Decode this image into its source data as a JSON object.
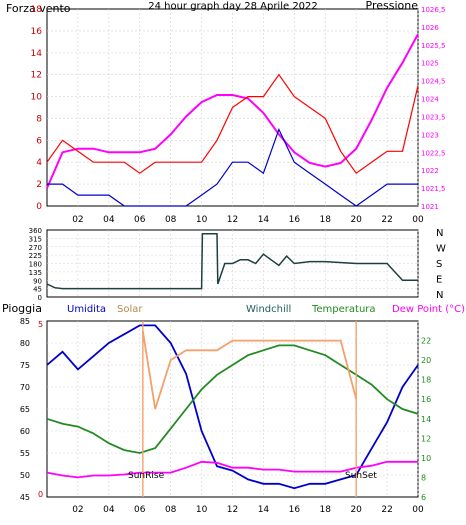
{
  "colors": {
    "wind": "#ff0000",
    "gust_pressure_axis": "#ff00ff",
    "title": "#ffff00",
    "direction": "#1f3f3f",
    "humidity": "#0000cc",
    "solar": "#f5a06b",
    "solar_text": "#b5894a",
    "windchill": "#206060",
    "temperature": "#228b22",
    "dewpoint": "#ff00ff",
    "rain": "#cc0000",
    "grid": "#d3d3d3",
    "frame": "#000000"
  },
  "x_tick_labels": [
    "02",
    "04",
    "06",
    "08",
    "10",
    "12",
    "14",
    "16",
    "18",
    "20",
    "22",
    "00"
  ],
  "chart_data": [
    {
      "type": "line",
      "title": "24 hour graph day   28 Aprile 2022",
      "left_axis_label": "Forza vento",
      "right_axis_label": "Pressione",
      "ylim_left": [
        0,
        18
      ],
      "ylim_right": [
        1021,
        1026.5
      ],
      "left_ticks": [
        "0",
        "2",
        "4",
        "6",
        "8",
        "10",
        "12",
        "14",
        "16",
        "18"
      ],
      "right_ticks": [
        "1021",
        "1021,5",
        "1022",
        "1022,5",
        "1023",
        "1023,5",
        "1024",
        "1024,5",
        "1025",
        "1025,5",
        "1026",
        "1026,5"
      ],
      "series": [
        {
          "color": "#ff00ff",
          "axis": "right",
          "x": [
            0,
            1,
            2,
            3,
            4,
            5,
            6,
            7,
            8,
            9,
            10,
            11,
            12,
            13,
            14,
            15,
            16,
            17,
            18,
            19,
            20,
            21,
            22,
            23,
            24
          ],
          "values": [
            1021.5,
            1022.5,
            1022.6,
            1022.6,
            1022.5,
            1022.5,
            1022.5,
            1022.6,
            1023.0,
            1023.5,
            1023.9,
            1024.1,
            1024.1,
            1024.0,
            1023.6,
            1023.0,
            1022.5,
            1022.2,
            1022.1,
            1022.2,
            1022.6,
            1023.4,
            1024.3,
            1025.0,
            1025.8
          ]
        },
        {
          "color": "#ff0000",
          "axis": "left",
          "x": [
            0,
            1,
            2,
            3,
            4,
            5,
            6,
            7,
            8,
            9,
            10,
            11,
            12,
            13,
            14,
            15,
            16,
            17,
            18,
            19,
            20,
            21,
            22,
            23,
            24
          ],
          "values": [
            4,
            6,
            5,
            4,
            4,
            4,
            3,
            4,
            4,
            4,
            4,
            6,
            9,
            10,
            10,
            12,
            10,
            9,
            8,
            5,
            3,
            4,
            5,
            5,
            11
          ]
        },
        {
          "color": "#0000cc",
          "axis": "left",
          "x": [
            0,
            1,
            2,
            3,
            4,
            5,
            6,
            7,
            8,
            9,
            10,
            11,
            12,
            13,
            14,
            15,
            16,
            17,
            18,
            19,
            20,
            21,
            22,
            23,
            24
          ],
          "values": [
            2,
            2,
            1,
            1,
            1,
            0,
            0,
            0,
            0,
            0,
            1,
            2,
            4,
            4,
            3,
            7,
            4,
            3,
            2,
            1,
            0,
            1,
            2,
            2,
            2
          ]
        }
      ]
    },
    {
      "type": "line",
      "title": "",
      "ylim": [
        0,
        360
      ],
      "left_ticks": [
        "0",
        "45",
        "90",
        "135",
        "180",
        "225",
        "270",
        "315",
        "360"
      ],
      "right_ticks": [
        "N",
        "E",
        "S",
        "W",
        "N"
      ],
      "series": [
        {
          "color": "#1f3f3f",
          "x": [
            0,
            0.5,
            1,
            2,
            4,
            6,
            8,
            10,
            10.05,
            11,
            11.05,
            11.5,
            12,
            12.5,
            13,
            13.5,
            14,
            14.5,
            15,
            15.5,
            16,
            17,
            18,
            20,
            22,
            23,
            24
          ],
          "values": [
            70,
            50,
            45,
            45,
            45,
            45,
            45,
            45,
            340,
            340,
            70,
            180,
            180,
            200,
            200,
            180,
            230,
            200,
            170,
            220,
            180,
            190,
            190,
            180,
            180,
            90,
            90
          ]
        }
      ]
    },
    {
      "type": "line",
      "left_axis_label": "Pioggia",
      "legend": [
        "Umidita",
        "Solar",
        "Windchill",
        "Temperatura",
        "Dew Point (°C)"
      ],
      "ylim_humidity": [
        45,
        85
      ],
      "ylim_temperature": [
        6,
        24
      ],
      "humidity_ticks": [
        "45",
        "50",
        "55",
        "60",
        "65",
        "70",
        "75",
        "80",
        "85"
      ],
      "temperature_ticks": [
        "6",
        "8",
        "10",
        "12",
        "14",
        "16",
        "18",
        "20",
        "22"
      ],
      "rain_ticks": [
        "0",
        "5"
      ],
      "annotations": [
        "SunRise",
        "SunSet"
      ],
      "series": [
        {
          "name": "Umidita",
          "color": "#0000cc",
          "axis": "humidity",
          "x": [
            0,
            1,
            2,
            3,
            4,
            5,
            6,
            7,
            8,
            9,
            10,
            11,
            12,
            13,
            14,
            15,
            16,
            17,
            18,
            19,
            20,
            21,
            22,
            23,
            24
          ],
          "values": [
            75,
            78,
            74,
            77,
            80,
            82,
            84,
            84,
            80,
            73,
            60,
            52,
            51,
            49,
            48,
            48,
            47,
            48,
            48,
            49,
            50,
            56,
            62,
            70,
            75
          ]
        },
        {
          "name": "Temperatura",
          "color": "#228b22",
          "axis": "temperature",
          "x": [
            0,
            1,
            2,
            3,
            4,
            5,
            6,
            7,
            8,
            9,
            10,
            11,
            12,
            13,
            14,
            15,
            16,
            17,
            18,
            19,
            20,
            21,
            22,
            23,
            24
          ],
          "values": [
            14,
            13.5,
            13.2,
            12.5,
            11.5,
            10.8,
            10.5,
            11,
            13,
            15,
            17,
            18.5,
            19.5,
            20.5,
            21,
            21.5,
            21.5,
            21,
            20.5,
            19.5,
            18.5,
            17.5,
            16,
            15,
            14.5
          ]
        },
        {
          "name": "Dew Point",
          "color": "#ff00ff",
          "axis": "temperature",
          "x": [
            0,
            1,
            2,
            3,
            4,
            5,
            6,
            7,
            8,
            9,
            10,
            11,
            12,
            13,
            14,
            15,
            16,
            17,
            18,
            19,
            20,
            21,
            22,
            23,
            24
          ],
          "values": [
            8.5,
            8.2,
            8,
            8.2,
            8.2,
            8.3,
            8.5,
            8.5,
            8.5,
            9,
            9.6,
            9.5,
            9,
            9,
            8.8,
            8.8,
            8.6,
            8.6,
            8.6,
            8.6,
            9,
            9.2,
            9.6,
            9.6,
            9.6
          ]
        },
        {
          "name": "Solar",
          "color": "#f5a06b",
          "axis": "temperature",
          "x": [
            6.2,
            7,
            8,
            9,
            10,
            11,
            12,
            13,
            14,
            15,
            16,
            17,
            18,
            19,
            20
          ],
          "values": [
            23,
            15,
            20,
            21,
            21,
            21,
            22,
            22,
            22,
            22,
            22,
            22,
            22,
            22,
            16
          ]
        }
      ]
    }
  ]
}
